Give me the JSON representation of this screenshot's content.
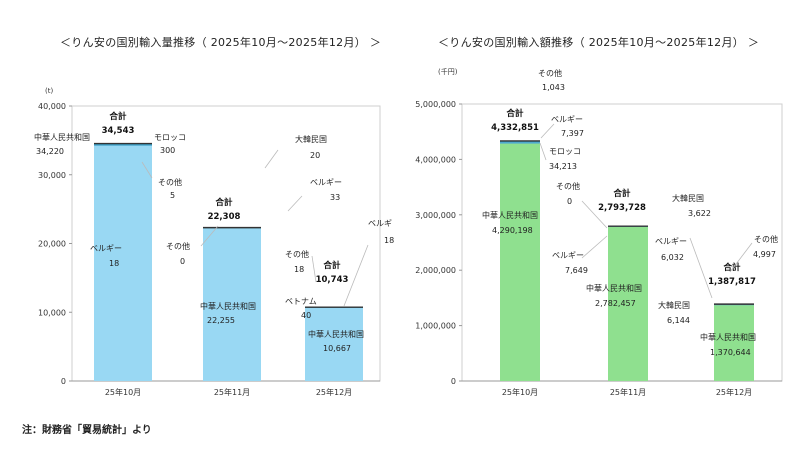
{
  "titles": {
    "left": "＜りん安の国別輸入量推移（ 2025年10月～2025年12月） ＞",
    "right": "＜りん安の国別輸入額推移（ 2025年10月～2025年12月） ＞"
  },
  "note": "注：財務省「貿易統計」より",
  "colors": {
    "volume_bar": "#99d8f3",
    "value_bar": "#8fe08f",
    "bar_edge": "#333333"
  },
  "chart_data": [
    {
      "type": "bar",
      "stacked": true,
      "title": "＜りん安の国別輸入量推移（ 2025年10月～2025年12月） ＞",
      "ylabel": "",
      "unit_label": "(t)",
      "ylim": [
        0,
        40000
      ],
      "yticks": [
        0,
        10000,
        20000,
        30000,
        40000
      ],
      "ytick_labels": [
        "0",
        "10,000",
        "20,000",
        "30,000",
        "40,000"
      ],
      "categories": [
        "25年10月",
        "25年11月",
        "25年12月"
      ],
      "totals": [
        34543,
        22308,
        10743
      ],
      "total_label": "合計",
      "total_value_labels": [
        "34,543",
        "22,308",
        "10,743"
      ],
      "series": [
        {
          "name": "中華人民共和国",
          "values": [
            34220,
            22255,
            10667
          ]
        },
        {
          "name": "モロッコ",
          "values": [
            300,
            null,
            null
          ]
        },
        {
          "name": "その他",
          "values": [
            5,
            0,
            18
          ]
        },
        {
          "name": "ベルギー",
          "values": [
            18,
            33,
            18
          ]
        },
        {
          "name": "大韓民国",
          "values": [
            null,
            20,
            null
          ]
        },
        {
          "name": "ベトナム",
          "values": [
            null,
            null,
            40
          ]
        }
      ],
      "annotations": [
        {
          "name": "中華人民共和国",
          "value": "34,220"
        },
        {
          "name": "モロッコ",
          "value": "300"
        },
        {
          "name": "その他",
          "value": "5"
        },
        {
          "name": "ベルギー",
          "value": "18"
        },
        {
          "name": "中華人民共和国",
          "value": "22,255"
        },
        {
          "name": "その他",
          "value": "0"
        },
        {
          "name": "大韓民国",
          "value": "20"
        },
        {
          "name": "ベルギー",
          "value": "33"
        },
        {
          "name": "中華人民共和国",
          "value": "10,667"
        },
        {
          "name": "その他",
          "value": "18"
        },
        {
          "name": "ベトナム",
          "value": "40"
        },
        {
          "name": "ベルギ",
          "value": "18"
        }
      ]
    },
    {
      "type": "bar",
      "stacked": true,
      "title": "＜りん安の国別輸入額推移（ 2025年10月～2025年12月） ＞",
      "ylabel": "",
      "unit_label": "(千円)",
      "ylim": [
        0,
        5000000
      ],
      "yticks": [
        0,
        1000000,
        2000000,
        3000000,
        4000000,
        5000000
      ],
      "ytick_labels": [
        "0",
        "1,000,000",
        "2,000,000",
        "3,000,000",
        "4,000,000",
        "5,000,000"
      ],
      "categories": [
        "25年10月",
        "25年11月",
        "25年12月"
      ],
      "totals": [
        4332851,
        2793728,
        1387817
      ],
      "total_label": "合計",
      "total_value_labels": [
        "4,332,851",
        "2,793,728",
        "1,387,817"
      ],
      "series": [
        {
          "name": "中華人民共和国",
          "values": [
            4290198,
            2782457,
            1370644
          ]
        },
        {
          "name": "その他",
          "values": [
            1043,
            0,
            4997
          ]
        },
        {
          "name": "ベルギー",
          "values": [
            7397,
            7649,
            6032
          ]
        },
        {
          "name": "モロッコ",
          "values": [
            34213,
            null,
            null
          ]
        },
        {
          "name": "大韓民国",
          "values": [
            null,
            3622,
            6144
          ]
        }
      ],
      "annotations": [
        {
          "name": "中華人民共和国",
          "value": "4,290,198"
        },
        {
          "name": "その他",
          "value": "1,043"
        },
        {
          "name": "ベルギー",
          "value": "7,397"
        },
        {
          "name": "モロッコ",
          "value": "34,213"
        },
        {
          "name": "中華人民共和国",
          "value": "2,782,457"
        },
        {
          "name": "その他",
          "value": "0"
        },
        {
          "name": "大韓民国",
          "value": "3,622"
        },
        {
          "name": "ベルギー",
          "value": "7,649"
        },
        {
          "name": "中華人民共和国",
          "value": "1,370,644"
        },
        {
          "name": "ベルギー",
          "value": "6,032"
        },
        {
          "name": "大韓民国",
          "value": "6,144"
        },
        {
          "name": "その他",
          "value": "4,997"
        }
      ]
    }
  ]
}
